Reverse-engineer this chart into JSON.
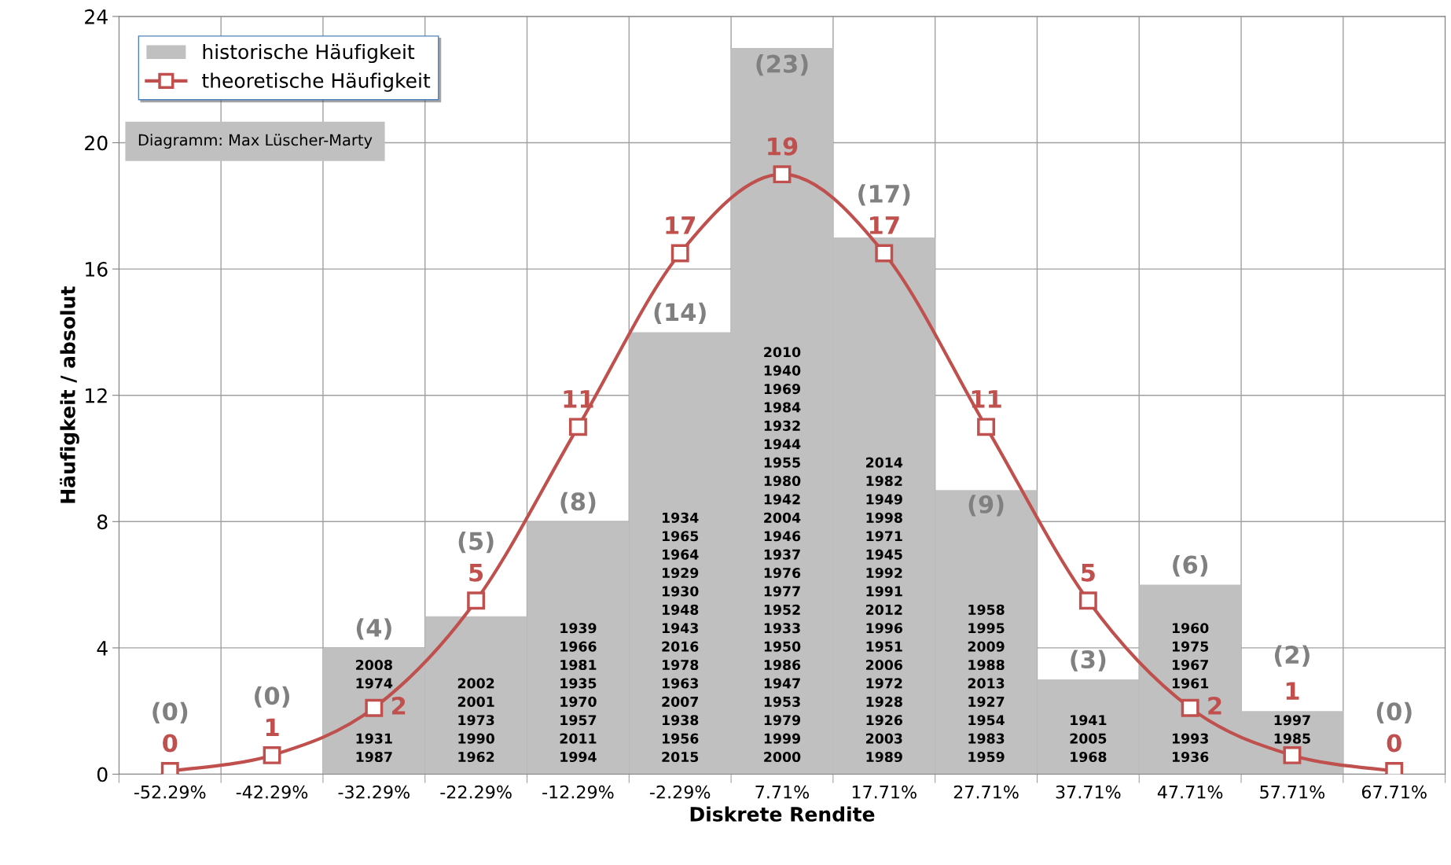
{
  "chart_data": {
    "type": "bar",
    "xlabel": "Diskrete Rendite",
    "ylabel": "Häufigkeit / absolut",
    "categories": [
      "-52.29%",
      "-42.29%",
      "-32.29%",
      "-22.29%",
      "-12.29%",
      "-2.29%",
      "7.71%",
      "17.71%",
      "27.71%",
      "37.71%",
      "47.71%",
      "57.71%",
      "67.71%"
    ],
    "series": [
      {
        "name": "historische Häufigkeit",
        "color": "#c0c0c0",
        "values": [
          0,
          0,
          4,
          5,
          8,
          14,
          23,
          17,
          9,
          3,
          6,
          2,
          0
        ],
        "value_labels": [
          "(0)",
          "(0)",
          "(4)",
          "(5)",
          "(8)",
          "(14)",
          "(23)",
          "(17)",
          "(9)",
          "(3)",
          "(6)",
          "(2)",
          "(0)"
        ]
      },
      {
        "name": "theoretische Häufigkeit",
        "type": "line",
        "color": "#c0504d",
        "marker": "square",
        "values": [
          0.1,
          0.6,
          2.1,
          5.5,
          11,
          16.5,
          19,
          16.5,
          11,
          5.5,
          2.1,
          0.6,
          0.1
        ],
        "value_labels": [
          "0",
          "1",
          "2",
          "5",
          "11",
          "17",
          "19",
          "17",
          "11",
          "5",
          "2",
          "1",
          "0"
        ]
      }
    ],
    "ylim": [
      0,
      24
    ],
    "yticks": [
      0,
      4,
      8,
      12,
      16,
      20,
      24
    ],
    "grid": true,
    "legend": "top left",
    "annotations": [
      "Diagramm: Max Lüscher-Marty",
      "2008\n1974\n\n\n1931\n1987",
      "2002\n2001\n1973\n1990\n1962",
      "1939\n1966\n1981\n1935\n1970\n1957\n2011\n1994",
      "1934\n1965\n1964\n1929\n1930\n1948\n1943\n2016\n1978\n1963\n2007\n1938\n1956\n2015",
      "2010\n1940\n1969\n1984\n1932\n1944\n1955\n1980\n1942\n2004\n1946\n1937\n1976\n1977\n1952\n1933\n1950\n1986\n1947\n1953\n1979\n1999\n2000",
      "2014\n1982\n1949\n1998\n1971\n1945\n1992\n1991\n2012\n1996\n1951\n2006\n1972\n1928\n1926\n2003\n1989",
      "1958\n1995\n2009\n1988\n2013\n1927\n1954\n1983\n1959",
      "1941\n2005\n1968",
      "1960\n1975\n1967\n1961\n\n\n1993\n1936",
      "1997\n1985\n"
    ]
  }
}
